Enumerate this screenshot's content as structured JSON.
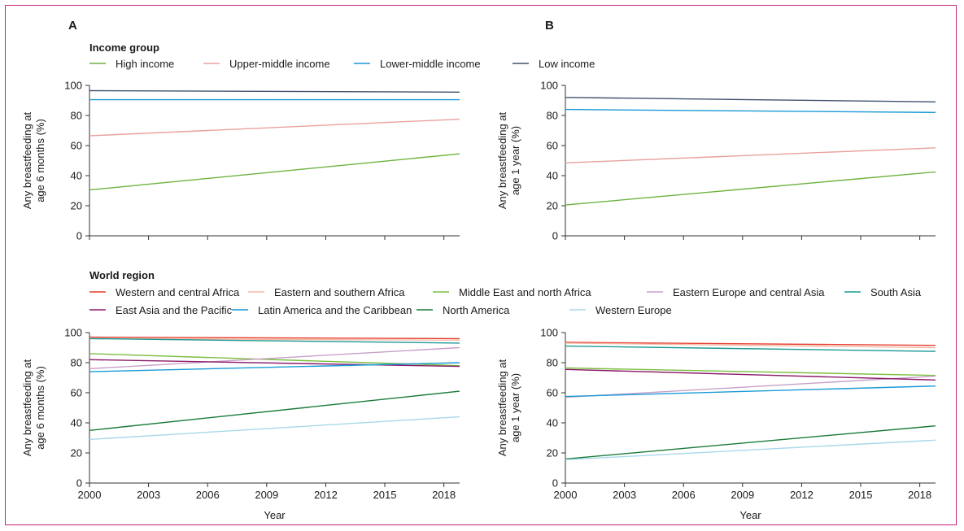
{
  "panels": {
    "a": "A",
    "b": "B"
  },
  "groups": {
    "income": "Income group",
    "region": "World region"
  },
  "colors": {
    "high_income": "#6db33f",
    "upper_middle_income": "#e8a29d",
    "lower_middle_income": "#1a9ad6",
    "low_income": "#41526e",
    "western_central_africa": "#e53e2e",
    "eastern_southern_africa": "#f5b8a3",
    "middle_east_north_africa": "#7bbf3f",
    "eastern_europe_central_asia": "#c8a0c8",
    "south_asia": "#1d9a96",
    "east_asia_pacific": "#8b1a6b",
    "latin_america_caribbean": "#1a9ad6",
    "north_america": "#1a7a3a",
    "western_europe": "#a8d8ea",
    "axis": "#333333",
    "frame": "#c8227a"
  },
  "chart_data": [
    {
      "type": "line",
      "panel": "A",
      "ylabel_lines": [
        "Any breastfeeding at",
        "age 6 months (%)"
      ],
      "xlabel": "",
      "xlim": [
        2000,
        2018.8
      ],
      "ylim": [
        0,
        100
      ],
      "yticks": [
        "0",
        "20",
        "40",
        "60",
        "80",
        "100"
      ],
      "xticks": [
        2000,
        2003,
        2006,
        2009,
        2012,
        2015,
        2018
      ],
      "xtick_labels": [],
      "legend_entries": [
        "High income",
        "Upper-middle income",
        "Lower-middle income",
        "Low income"
      ],
      "series": [
        {
          "name": "High income",
          "color_key": "high_income",
          "x": [
            2000,
            2018.8
          ],
          "y": [
            30.5,
            54.5
          ]
        },
        {
          "name": "Upper-middle income",
          "color_key": "upper_middle_income",
          "x": [
            2000,
            2018.8
          ],
          "y": [
            66.5,
            77.5
          ]
        },
        {
          "name": "Lower-middle income",
          "color_key": "lower_middle_income",
          "x": [
            2000,
            2018.8
          ],
          "y": [
            90.5,
            90.5
          ]
        },
        {
          "name": "Low income",
          "color_key": "low_income",
          "x": [
            2000,
            2018.8
          ],
          "y": [
            96.5,
            95.5
          ]
        }
      ]
    },
    {
      "type": "line",
      "panel": "B",
      "ylabel_lines": [
        "Any breastfeeding at",
        "age 1 year (%)"
      ],
      "xlabel": "",
      "xlim": [
        2000,
        2018.8
      ],
      "ylim": [
        0,
        100
      ],
      "yticks": [
        "0",
        "20",
        "40",
        "60",
        "80",
        "100"
      ],
      "xticks": [
        2000,
        2003,
        2006,
        2009,
        2012,
        2015,
        2018
      ],
      "xtick_labels": [],
      "series": [
        {
          "name": "High income",
          "color_key": "high_income",
          "x": [
            2000,
            2018.8
          ],
          "y": [
            20.5,
            42.5
          ]
        },
        {
          "name": "Upper-middle income",
          "color_key": "upper_middle_income",
          "x": [
            2000,
            2018.8
          ],
          "y": [
            48.5,
            58.5
          ]
        },
        {
          "name": "Lower-middle income",
          "color_key": "lower_middle_income",
          "x": [
            2000,
            2018.8
          ],
          "y": [
            84,
            82
          ]
        },
        {
          "name": "Low income",
          "color_key": "low_income",
          "x": [
            2000,
            2018.8
          ],
          "y": [
            92,
            89
          ]
        }
      ]
    },
    {
      "type": "line",
      "panel": "A",
      "ylabel_lines": [
        "Any breastfeeding at",
        "age 6 months (%)"
      ],
      "xlabel": "Year",
      "xlim": [
        2000,
        2018.8
      ],
      "ylim": [
        0,
        100
      ],
      "yticks": [
        "0",
        "20",
        "40",
        "60",
        "80",
        "100"
      ],
      "xticks": [
        2000,
        2003,
        2006,
        2009,
        2012,
        2015,
        2018
      ],
      "xtick_labels": [
        "2000",
        "2003",
        "2006",
        "2009",
        "2012",
        "2015",
        "2018"
      ],
      "legend_rows": [
        [
          "Western and central Africa",
          "Eastern and southern Africa",
          "Middle East and north Africa",
          "Eastern Europe and central Asia",
          "South Asia"
        ],
        [
          "East Asia and the Pacific",
          "Latin America and the Caribbean",
          "North America",
          "Western Europe"
        ]
      ],
      "series": [
        {
          "name": "Western and central Africa",
          "color_key": "western_central_africa",
          "x": [
            2000,
            2018.8
          ],
          "y": [
            97,
            96
          ]
        },
        {
          "name": "Eastern and southern Africa",
          "color_key": "eastern_southern_africa",
          "x": [
            2000,
            2018.8
          ],
          "y": [
            96,
            95
          ]
        },
        {
          "name": "Middle East and north Africa",
          "color_key": "middle_east_north_africa",
          "x": [
            2000,
            2018.8
          ],
          "y": [
            86,
            78
          ]
        },
        {
          "name": "Eastern Europe and central Asia",
          "color_key": "eastern_europe_central_asia",
          "x": [
            2000,
            2018.8
          ],
          "y": [
            76,
            90
          ]
        },
        {
          "name": "South Asia",
          "color_key": "south_asia",
          "x": [
            2000,
            2018.8
          ],
          "y": [
            96,
            93
          ]
        },
        {
          "name": "East Asia and the Pacific",
          "color_key": "east_asia_pacific",
          "x": [
            2000,
            2018.8
          ],
          "y": [
            82,
            77.5
          ]
        },
        {
          "name": "Latin America and the Caribbean",
          "color_key": "latin_america_caribbean",
          "x": [
            2000,
            2018.8
          ],
          "y": [
            74,
            80
          ]
        },
        {
          "name": "North America",
          "color_key": "north_america",
          "x": [
            2000,
            2018.8
          ],
          "y": [
            35,
            61
          ]
        },
        {
          "name": "Western Europe",
          "color_key": "western_europe",
          "x": [
            2000,
            2018.8
          ],
          "y": [
            29,
            44
          ]
        }
      ]
    },
    {
      "type": "line",
      "panel": "B",
      "ylabel_lines": [
        "Any breastfeeding at",
        "age 1 year (%)"
      ],
      "xlabel": "Year",
      "xlim": [
        2000,
        2018.8
      ],
      "ylim": [
        0,
        100
      ],
      "yticks": [
        "0",
        "20",
        "40",
        "60",
        "80",
        "100"
      ],
      "xticks": [
        2000,
        2003,
        2006,
        2009,
        2012,
        2015,
        2018
      ],
      "xtick_labels": [
        "2000",
        "2003",
        "2006",
        "2009",
        "2012",
        "2015",
        "2018"
      ],
      "series": [
        {
          "name": "Western and central Africa",
          "color_key": "western_central_africa",
          "x": [
            2000,
            2018.8
          ],
          "y": [
            93.5,
            91.5
          ]
        },
        {
          "name": "Eastern and southern Africa",
          "color_key": "eastern_southern_africa",
          "x": [
            2000,
            2018.8
          ],
          "y": [
            93,
            90
          ]
        },
        {
          "name": "Middle East and north Africa",
          "color_key": "middle_east_north_africa",
          "x": [
            2000,
            2018.8
          ],
          "y": [
            76.5,
            71.5
          ]
        },
        {
          "name": "Eastern Europe and central Asia",
          "color_key": "eastern_europe_central_asia",
          "x": [
            2000,
            2018.8
          ],
          "y": [
            57,
            71
          ]
        },
        {
          "name": "South Asia",
          "color_key": "south_asia",
          "x": [
            2000,
            2018.8
          ],
          "y": [
            91,
            87.5
          ]
        },
        {
          "name": "East Asia and the Pacific",
          "color_key": "east_asia_pacific",
          "x": [
            2000,
            2018.8
          ],
          "y": [
            75.5,
            68.5
          ]
        },
        {
          "name": "Latin America and the Caribbean",
          "color_key": "latin_america_caribbean",
          "x": [
            2000,
            2018.8
          ],
          "y": [
            57.5,
            64.5
          ]
        },
        {
          "name": "North America",
          "color_key": "north_america",
          "x": [
            2000,
            2018.8
          ],
          "y": [
            16,
            38
          ]
        },
        {
          "name": "Western Europe",
          "color_key": "western_europe",
          "x": [
            2000,
            2018.8
          ],
          "y": [
            15.5,
            28.5
          ]
        }
      ]
    }
  ]
}
